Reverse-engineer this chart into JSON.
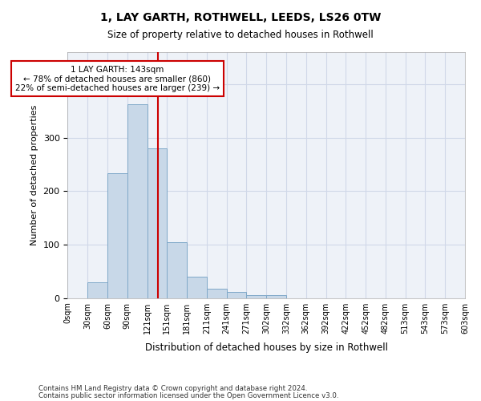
{
  "title1": "1, LAY GARTH, ROTHWELL, LEEDS, LS26 0TW",
  "title2": "Size of property relative to detached houses in Rothwell",
  "xlabel": "Distribution of detached houses by size in Rothwell",
  "ylabel": "Number of detached properties",
  "footer1": "Contains HM Land Registry data © Crown copyright and database right 2024.",
  "footer2": "Contains public sector information licensed under the Open Government Licence v3.0.",
  "bin_labels": [
    "0sqm",
    "30sqm",
    "60sqm",
    "90sqm",
    "121sqm",
    "151sqm",
    "181sqm",
    "211sqm",
    "241sqm",
    "271sqm",
    "302sqm",
    "332sqm",
    "362sqm",
    "392sqm",
    "422sqm",
    "452sqm",
    "482sqm",
    "513sqm",
    "543sqm",
    "573sqm",
    "603sqm"
  ],
  "bar_values": [
    0,
    30,
    233,
    363,
    280,
    105,
    40,
    18,
    12,
    6,
    5,
    0,
    0,
    0,
    0,
    0,
    0,
    0,
    0,
    0
  ],
  "bar_color": "#c8d8e8",
  "bar_edge_color": "#7fa8c8",
  "property_line_x": 4.53,
  "property_line_color": "#cc0000",
  "annotation_text": "1 LAY GARTH: 143sqm\n← 78% of detached houses are smaller (860)\n22% of semi-detached houses are larger (239) →",
  "annotation_box_color": "#ffffff",
  "annotation_box_edge": "#cc0000",
  "ylim": [
    0,
    460
  ],
  "grid_color": "#d0d8e8",
  "axes_background": "#eef2f8"
}
